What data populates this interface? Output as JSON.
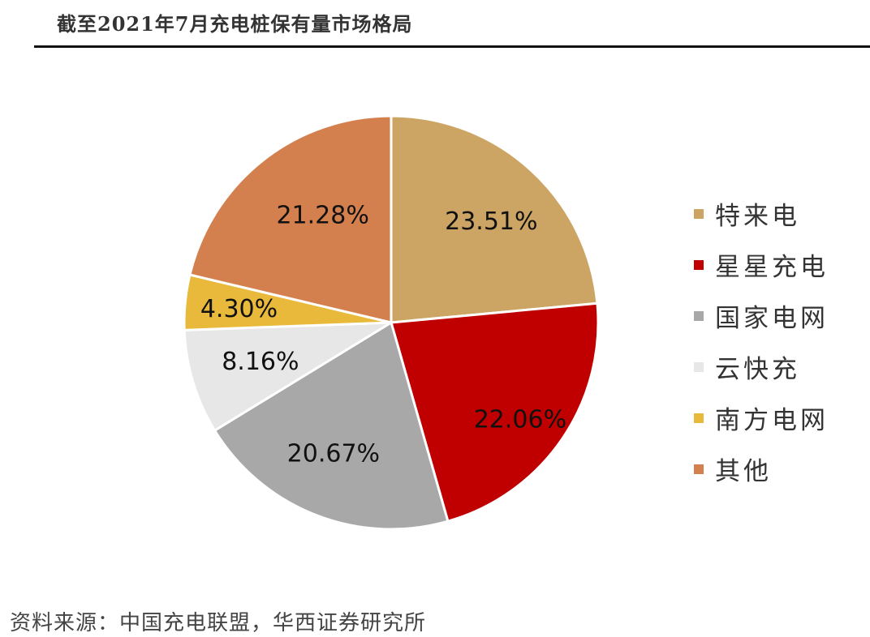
{
  "title": "截至2021年7月充电桩保有量市场格局",
  "source": "资料来源：中国充电联盟，华西证券研究所",
  "chart_data": {
    "type": "pie",
    "title": "截至2021年7月充电桩保有量市场格局",
    "legend_position": "right",
    "slices": [
      {
        "name": "特来电",
        "value": 23.51,
        "label": "23.51%",
        "color": "#CCA463"
      },
      {
        "name": "星星充电",
        "value": 22.06,
        "label": "22.06%",
        "color": "#C00000"
      },
      {
        "name": "国家电网",
        "value": 20.67,
        "label": "20.67%",
        "color": "#A9A8A9"
      },
      {
        "name": "云快充",
        "value": 8.16,
        "label": "8.16%",
        "color": "#E8E7E8"
      },
      {
        "name": "南方电网",
        "value": 4.3,
        "label": "4.30%",
        "color": "#E8B93A"
      },
      {
        "name": "其他",
        "value": 21.28,
        "label": "21.28%",
        "color": "#D4804E"
      }
    ]
  }
}
